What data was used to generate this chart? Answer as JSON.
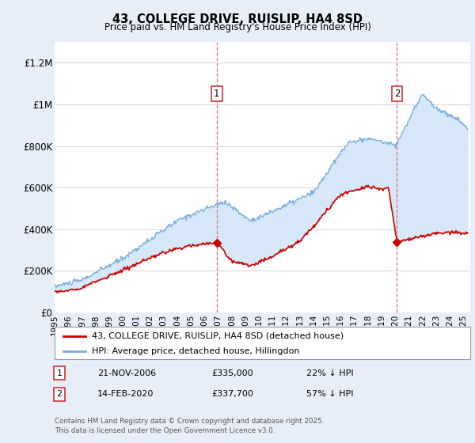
{
  "title": "43, COLLEGE DRIVE, RUISLIP, HA4 8SD",
  "subtitle": "Price paid vs. HM Land Registry's House Price Index (HPI)",
  "ylabel_ticks": [
    "£0",
    "£200K",
    "£400K",
    "£600K",
    "£800K",
    "£1M",
    "£1.2M"
  ],
  "ytick_values": [
    0,
    200000,
    400000,
    600000,
    800000,
    1000000,
    1200000
  ],
  "ylim": [
    0,
    1300000
  ],
  "xlim_start": 1995,
  "xlim_end": 2025.5,
  "sale1_x": 2006.9,
  "sale1_y": 335000,
  "sale2_x": 2020.12,
  "sale2_y": 337700,
  "line1_color": "#cc0000",
  "line2_color": "#7aaddb",
  "fill_color": "#d6e8f7",
  "vline_color": "#e87070",
  "sale_marker_color": "#cc0000",
  "label_border_color": "#cc3333",
  "legend_line1": "43, COLLEGE DRIVE, RUISLIP, HA4 8SD (detached house)",
  "legend_line2": "HPI: Average price, detached house, Hillingdon",
  "annotation1_date": "21-NOV-2006",
  "annotation1_price": "£335,000",
  "annotation1_hpi": "22% ↓ HPI",
  "annotation2_date": "14-FEB-2020",
  "annotation2_price": "£337,700",
  "annotation2_hpi": "57% ↓ HPI",
  "footnote": "Contains HM Land Registry data © Crown copyright and database right 2025.\nThis data is licensed under the Open Government Licence v3.0.",
  "background_color": "#e8eef7",
  "plot_bg_color": "#ffffff"
}
